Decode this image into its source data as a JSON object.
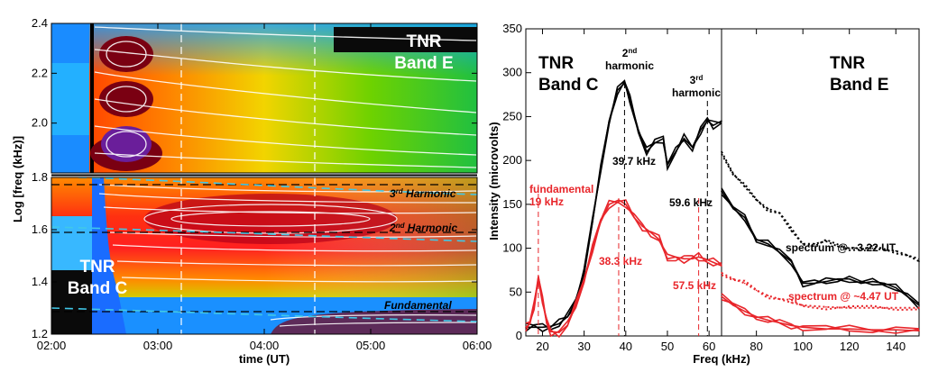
{
  "chart_data": [
    {
      "type": "heatmap",
      "xlabel": "time (UT)",
      "ylabel": "Log [freq (kHz)]",
      "x_ticks": [
        "02:00",
        "03:00",
        "04:00",
        "05:00",
        "06:00"
      ],
      "x_range": [
        "02:00",
        "06:00"
      ],
      "panels": [
        {
          "name": "TNR Band E",
          "ylim": [
            1.8,
            2.4
          ],
          "y_ticks": [
            "2.0",
            "2.2",
            "2.4"
          ]
        },
        {
          "name": "TNR Band C",
          "ylim": [
            1.2,
            1.8
          ],
          "y_ticks": [
            "1.2",
            "1.4",
            "1.6",
            "1.8"
          ]
        }
      ],
      "labels": {
        "band_e": "TNR\nBand E",
        "band_c": "TNR\nBand C"
      },
      "annotations": [
        {
          "text": "3rd Harmonic",
          "log_freq": 1.77
        },
        {
          "text": "2nd Harmonic",
          "log_freq": 1.6
        },
        {
          "text": "Fundamental",
          "log_freq": 1.29
        }
      ],
      "dashed_times": [
        "03:15",
        "04:30"
      ],
      "colors": {
        "hot": "#7a0012",
        "cold": "#0a0a0a",
        "harmonic_line": "#40c8e8"
      }
    },
    {
      "type": "line",
      "panel": "TNR Band C",
      "xlabel": "Freq (kHz)",
      "ylabel": "Intensity (microvolts)",
      "xlim": [
        16,
        63
      ],
      "ylim": [
        0,
        350
      ],
      "x_ticks": [
        20,
        30,
        40,
        50,
        60
      ],
      "y_ticks": [
        0,
        50,
        100,
        150,
        200,
        250,
        300,
        350
      ],
      "title": "TNR\nBand C",
      "series": [
        {
          "color": "#000000",
          "x": [
            16,
            18,
            20,
            22,
            24,
            26,
            28,
            30,
            32,
            34,
            36,
            38,
            39.7,
            41,
            43,
            45,
            47,
            49,
            50,
            52,
            54,
            56,
            58,
            59.6,
            61,
            63
          ],
          "y": [
            10,
            10,
            10,
            11,
            14,
            22,
            40,
            75,
            130,
            190,
            245,
            280,
            288,
            270,
            235,
            210,
            220,
            225,
            195,
            210,
            225,
            215,
            235,
            245,
            240,
            245
          ]
        },
        {
          "color": "#e8262b",
          "x": [
            16,
            17,
            18,
            19,
            20,
            21,
            22,
            24,
            26,
            28,
            30,
            32,
            34,
            36,
            38.3,
            40,
            42,
            44,
            46,
            48,
            50,
            52,
            54,
            56,
            57.5,
            59,
            61,
            63
          ],
          "y": [
            10,
            14,
            35,
            68,
            40,
            15,
            5,
            4,
            12,
            35,
            65,
            100,
            130,
            150,
            155,
            150,
            135,
            125,
            118,
            110,
            88,
            90,
            88,
            88,
            90,
            88,
            84,
            80
          ]
        }
      ],
      "annotations": [
        {
          "text": "fundamental\n19 kHz",
          "x": 19,
          "color": "#e8262b"
        },
        {
          "text": "2nd\nharmonic",
          "x": 39.7
        },
        {
          "text": "3rd\nharmonic",
          "x": 59.6
        },
        {
          "text": "39.7 kHz",
          "x": 39.7
        },
        {
          "text": "59.6 kHz",
          "x": 59.6
        },
        {
          "text": "38.3 kHz",
          "x": 38.3,
          "color": "#e8262b"
        },
        {
          "text": "57.5 kHz",
          "x": 57.5,
          "color": "#e8262b"
        }
      ]
    },
    {
      "type": "line",
      "panel": "TNR Band E",
      "xlabel": "Freq (kHz)",
      "xlim": [
        65,
        150
      ],
      "ylim": [
        0,
        350
      ],
      "x_ticks": [
        80,
        100,
        120,
        140
      ],
      "title": "TNR\nBand E",
      "series": [
        {
          "color": "#000000",
          "style": "dotted",
          "x": [
            65,
            70,
            75,
            80,
            85,
            90,
            95,
            100,
            105,
            110,
            115,
            120,
            125,
            130,
            135,
            140,
            145,
            150
          ],
          "y": [
            210,
            185,
            170,
            155,
            145,
            140,
            120,
            105,
            105,
            108,
            102,
            100,
            100,
            100,
            98,
            97,
            92,
            85
          ]
        },
        {
          "color": "#000000",
          "style": "solid",
          "x": [
            65,
            70,
            75,
            80,
            85,
            90,
            95,
            100,
            105,
            110,
            115,
            120,
            125,
            130,
            135,
            140,
            145,
            150
          ],
          "y": [
            165,
            145,
            135,
            110,
            105,
            95,
            85,
            60,
            60,
            62,
            65,
            65,
            60,
            62,
            60,
            55,
            45,
            35
          ]
        },
        {
          "color": "#e8262b",
          "style": "dotted",
          "x": [
            65,
            70,
            75,
            80,
            85,
            90,
            95,
            100,
            110,
            120,
            130,
            140,
            150
          ],
          "y": [
            72,
            65,
            60,
            52,
            46,
            42,
            38,
            35,
            33,
            32,
            32,
            32,
            32
          ]
        },
        {
          "color": "#e8262b",
          "style": "solid",
          "x": [
            65,
            70,
            75,
            80,
            85,
            90,
            95,
            100,
            110,
            120,
            130,
            140,
            150
          ],
          "y": [
            45,
            35,
            28,
            22,
            18,
            15,
            12,
            10,
            8,
            8,
            7,
            7,
            6
          ]
        }
      ],
      "annotations": [
        {
          "text": "spectrum @ ~3.22 UT"
        },
        {
          "text": "spectrum @ ~4.47 UT",
          "color": "#e8262b"
        }
      ]
    }
  ]
}
